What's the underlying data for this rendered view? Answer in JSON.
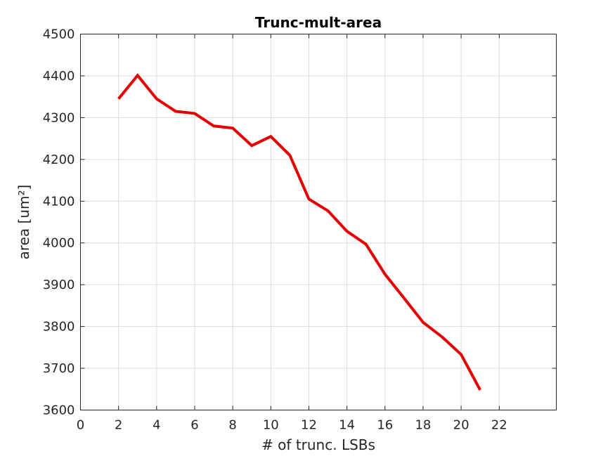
{
  "chart_data": {
    "type": "line",
    "title": "Trunc-mult-area",
    "xlabel": "# of trunc. LSBs",
    "ylabel": "area [um²]",
    "xlim": [
      0,
      25
    ],
    "ylim": [
      3600,
      4500
    ],
    "xticks": [
      0,
      2,
      4,
      6,
      8,
      10,
      12,
      14,
      16,
      18,
      20,
      22
    ],
    "yticks": [
      3600,
      3700,
      3800,
      3900,
      4000,
      4100,
      4200,
      4300,
      4400,
      4500
    ],
    "grid": true,
    "series": [
      {
        "color": "#e60000",
        "x": [
          2,
          3,
          4,
          5,
          6,
          7,
          8,
          9,
          10,
          11,
          12,
          13,
          14,
          15,
          16,
          17,
          18,
          19,
          20,
          21
        ],
        "y": [
          4345,
          4401,
          4345,
          4315,
          4310,
          4280,
          4275,
          4233,
          4255,
          4210,
          4105,
          4077,
          4028,
          3997,
          3925,
          3868,
          3810,
          3775,
          3733,
          3648
        ]
      }
    ]
  }
}
